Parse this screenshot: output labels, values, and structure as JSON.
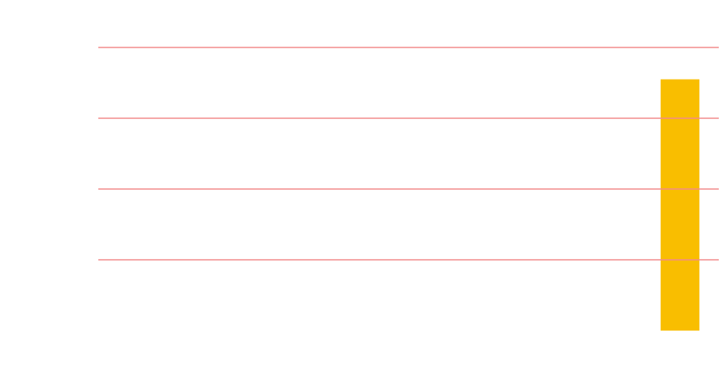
{
  "chart_data": {
    "type": "bar",
    "categories": [
      null,
      null,
      null,
      null,
      null,
      null,
      null,
      null
    ],
    "values": [
      null,
      null,
      null,
      null,
      null,
      null,
      null,
      3.55
    ],
    "color": "#f9be00",
    "ylim": [
      0,
      4
    ],
    "yticks": [
      1,
      2,
      3,
      4
    ],
    "grid": true,
    "grid_color": "#f28b8b"
  }
}
